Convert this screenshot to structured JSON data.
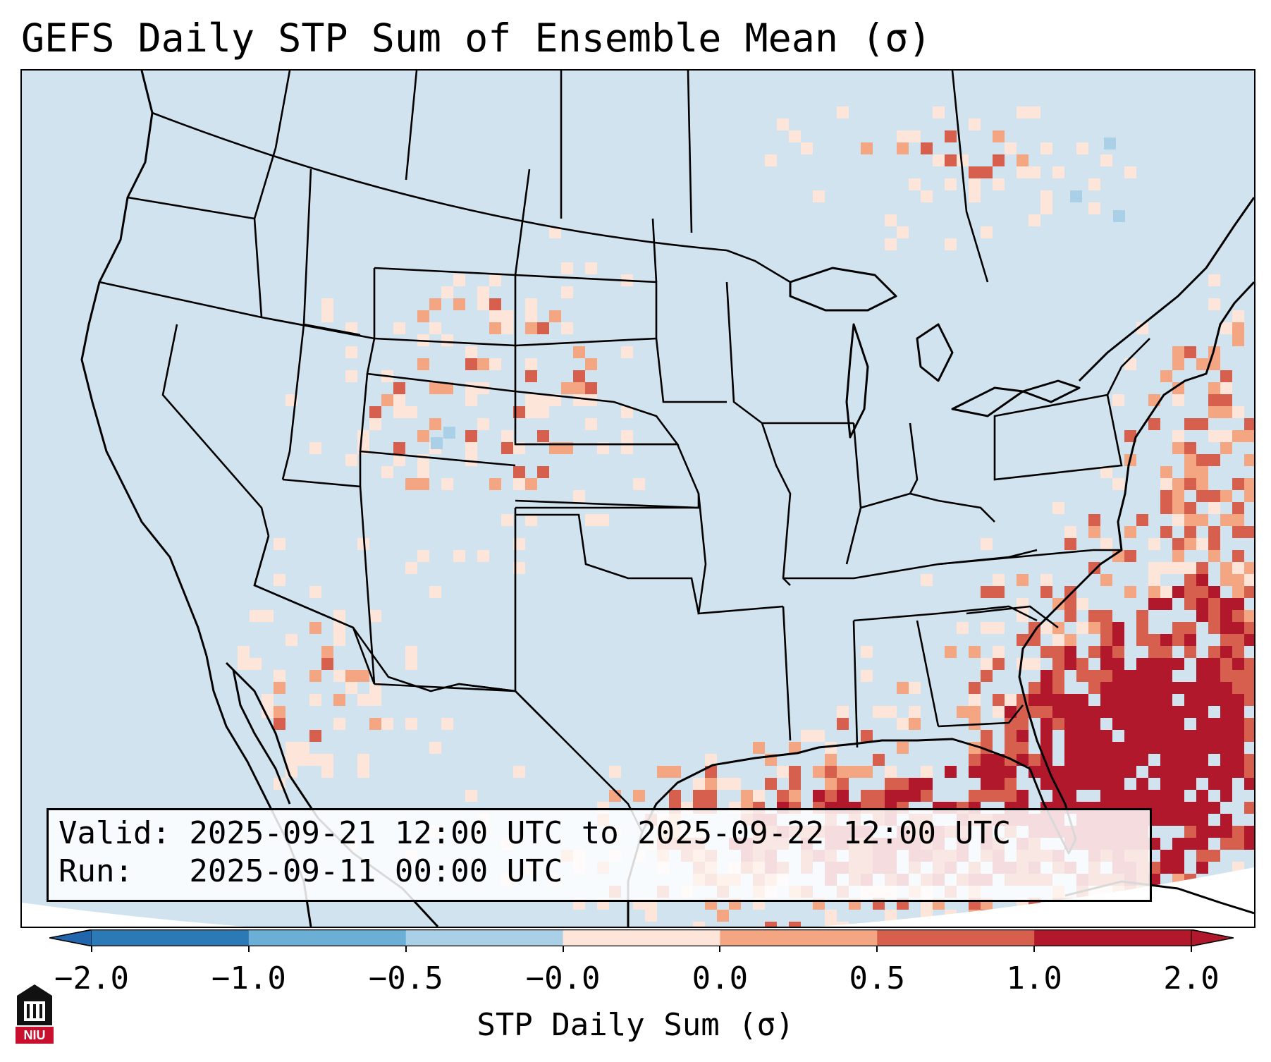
{
  "title": "GEFS Daily STP Sum of Ensemble Mean (σ)",
  "info": {
    "valid_line": "Valid: 2025-09-21 12:00 UTC to 2025-09-22 12:00 UTC",
    "run_line": "Run:   2025-09-11 00:00 UTC"
  },
  "colorbar": {
    "label": "STP Daily Sum (σ)",
    "tick_labels": [
      "−2.0",
      "−1.0",
      "−0.5",
      "−0.0",
      "0.0",
      "0.5",
      "1.0",
      "2.0"
    ],
    "bin_colors": [
      "#2b79b5",
      "#6baed6",
      "#a9d0e6",
      "#f2f6f8",
      "#fde5da",
      "#f4a582",
      "#d6604d",
      "#b2182b"
    ],
    "under_color": "#2166ac",
    "over_color": "#b2182b"
  },
  "map": {
    "background_color": "#d0e3ee",
    "field": "STP daily sum anomaly of GEFS ensemble mean, shaded on a map of the contiguous United States, southern Canada, northern Mexico and the Gulf of Mexico"
  },
  "logo": {
    "text": "NIU"
  }
}
